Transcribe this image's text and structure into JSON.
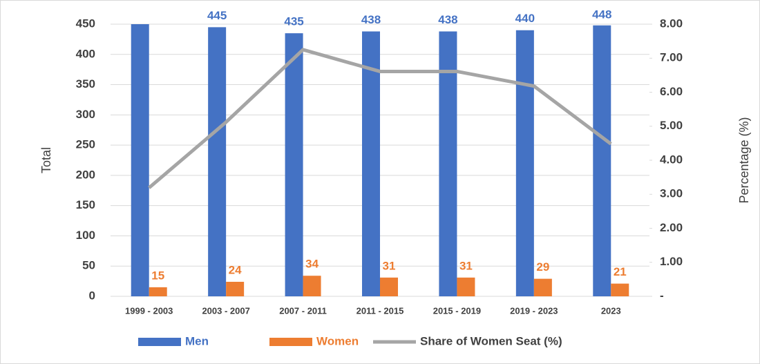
{
  "chart_data": {
    "type": "bar",
    "categories": [
      "1999 - 2003",
      "2003 - 2007",
      "2007 - 2011",
      "2011 - 2015",
      "2015 - 2019",
      "2019 - 2023",
      "2023"
    ],
    "series": [
      {
        "name": "Men",
        "color": "#4472c4",
        "values": [
          450,
          445,
          435,
          438,
          438,
          440,
          448
        ],
        "value_labels": [
          null,
          "445",
          "435",
          "438",
          "438",
          "440",
          "448"
        ]
      },
      {
        "name": "Women",
        "color": "#ed7d31",
        "values": [
          15,
          24,
          34,
          31,
          31,
          29,
          21
        ]
      },
      {
        "name": "Share of Women Seat (%)",
        "type": "line",
        "axis": "y2",
        "color": "#a5a5a5",
        "values": [
          3.19,
          5.12,
          7.25,
          6.61,
          6.61,
          6.18,
          4.48
        ]
      }
    ],
    "ylabel": "Total",
    "y2label": "Percentage (%)",
    "ylim": [
      0,
      450
    ],
    "yticks": [
      0,
      50,
      100,
      150,
      200,
      250,
      300,
      350,
      400,
      450
    ],
    "y2lim": [
      0,
      8
    ],
    "y2ticks": [
      {
        "value": 0,
        "label": "-"
      },
      {
        "value": 1,
        "label": "1.00"
      },
      {
        "value": 2,
        "label": "2.00"
      },
      {
        "value": 3,
        "label": "3.00"
      },
      {
        "value": 4,
        "label": "4.00"
      },
      {
        "value": 5,
        "label": "5.00"
      },
      {
        "value": 6,
        "label": "6.00"
      },
      {
        "value": 7,
        "label": "7.00"
      },
      {
        "value": 8,
        "label": "8.00"
      }
    ],
    "grid": true,
    "legend": "bottom"
  }
}
